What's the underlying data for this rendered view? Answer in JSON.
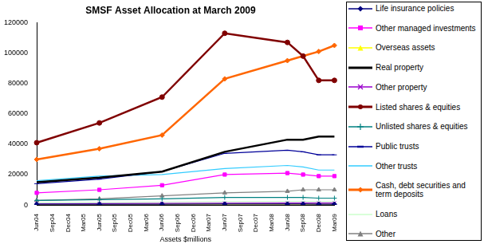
{
  "chart_data": {
    "type": "line",
    "title": "SMSF Asset Allocation at March 2009",
    "x_label": "Assets $millions",
    "categories": [
      "Jun04",
      "Sep04",
      "Dec04",
      "Mar05",
      "Jun05",
      "Sep05",
      "Dec05",
      "Mar06",
      "Jun06",
      "Sep06",
      "Dec06",
      "Mar07",
      "Jun07",
      "Sep07",
      "Dec07",
      "Mar08",
      "Jun08",
      "Sep08",
      "Dec08",
      "Mar09"
    ],
    "series": [
      {
        "name": "Life insurance policies",
        "color": "#000080",
        "marker": "diamond",
        "line_style": "solid",
        "values": [
          500,
          null,
          null,
          null,
          500,
          null,
          null,
          null,
          500,
          null,
          null,
          null,
          600,
          null,
          null,
          null,
          600,
          600,
          500,
          500
        ]
      },
      {
        "name": "Other managed investments",
        "color": "#ff00ff",
        "marker": "square",
        "line_style": "solid",
        "values": [
          8000,
          null,
          null,
          null,
          10000,
          null,
          null,
          null,
          13000,
          null,
          null,
          null,
          20000,
          null,
          null,
          null,
          21000,
          20000,
          19000,
          19000
        ]
      },
      {
        "name": "Overseas assets",
        "color": "#ffff00",
        "marker": "triangle",
        "line_style": "solid",
        "values": [
          300,
          null,
          null,
          null,
          300,
          null,
          null,
          null,
          400,
          null,
          null,
          null,
          500,
          null,
          null,
          null,
          500,
          500,
          400,
          400
        ]
      },
      {
        "name": "Real property",
        "color": "#000000",
        "marker": "none",
        "line_style": "thick",
        "values": [
          15000,
          null,
          null,
          null,
          18000,
          null,
          null,
          null,
          22000,
          null,
          null,
          null,
          35000,
          null,
          null,
          null,
          43000,
          43000,
          45000,
          45000
        ]
      },
      {
        "name": "Other property",
        "color": "#9900cc",
        "marker": "x",
        "line_style": "solid",
        "values": [
          800,
          null,
          null,
          null,
          900,
          null,
          null,
          null,
          1000,
          null,
          null,
          null,
          1200,
          null,
          null,
          null,
          1300,
          1300,
          1300,
          1300
        ]
      },
      {
        "name": "Listed shares & equities",
        "color": "#800000",
        "marker": "circle",
        "line_style": "thick",
        "values": [
          41000,
          null,
          null,
          null,
          54000,
          null,
          null,
          null,
          71000,
          null,
          null,
          null,
          113000,
          null,
          null,
          null,
          107000,
          98000,
          82000,
          82000
        ]
      },
      {
        "name": "Unlisted shares & equities",
        "color": "#008080",
        "marker": "plus",
        "line_style": "solid",
        "values": [
          3000,
          null,
          null,
          null,
          3500,
          null,
          null,
          null,
          4000,
          null,
          null,
          null,
          5000,
          null,
          null,
          null,
          5000,
          5000,
          4500,
          4500
        ]
      },
      {
        "name": "Public trusts",
        "color": "#000099",
        "marker": "dash",
        "line_style": "solid",
        "values": [
          14000,
          null,
          null,
          null,
          17000,
          null,
          null,
          null,
          22000,
          null,
          null,
          null,
          34000,
          null,
          null,
          null,
          36000,
          35000,
          33000,
          33000
        ]
      },
      {
        "name": "Other trusts",
        "color": "#33ccff",
        "marker": "none",
        "line_style": "solid",
        "values": [
          16000,
          null,
          null,
          null,
          19000,
          null,
          null,
          null,
          20000,
          null,
          null,
          null,
          24000,
          null,
          null,
          null,
          26000,
          25000,
          23000,
          23000
        ]
      },
      {
        "name": "Cash, debt securities and term deposits",
        "color": "#ff6600",
        "marker": "diamond",
        "line_style": "thick",
        "values": [
          30000,
          null,
          null,
          null,
          37000,
          null,
          null,
          null,
          46000,
          null,
          null,
          null,
          83000,
          null,
          null,
          null,
          95000,
          98000,
          101000,
          105000
        ]
      },
      {
        "name": "Loans",
        "color": "#ccffcc",
        "marker": "none",
        "line_style": "solid",
        "values": [
          1500,
          null,
          null,
          null,
          1700,
          null,
          null,
          null,
          2000,
          null,
          null,
          null,
          2200,
          null,
          null,
          null,
          2300,
          2300,
          2200,
          2200
        ]
      },
      {
        "name": "Other",
        "color": "#808080",
        "marker": "triangle",
        "line_style": "solid",
        "values": [
          3000,
          null,
          null,
          null,
          4000,
          null,
          null,
          null,
          6000,
          null,
          null,
          null,
          8000,
          null,
          null,
          null,
          9000,
          10000,
          10000,
          10000
        ]
      }
    ],
    "ylim": [
      0,
      120000
    ],
    "yticks": [
      0,
      20000,
      40000,
      60000,
      80000,
      100000,
      120000
    ],
    "grid": false,
    "legend": "right"
  }
}
